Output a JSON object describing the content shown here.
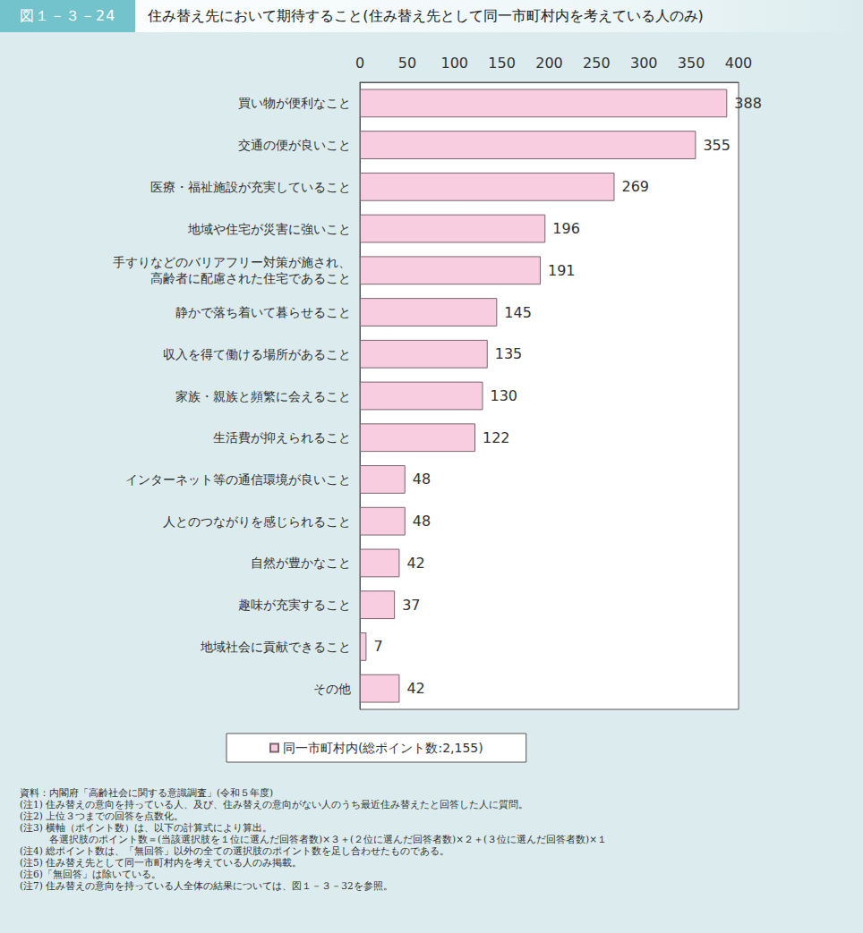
{
  "chart_data": {
    "type": "bar",
    "orientation": "horizontal",
    "figure_number": "図１－３－24",
    "title": "住み替え先において期待すること(住み替え先として同一市町村内を考えている人のみ)",
    "categories": [
      "買い物が便利なこと",
      "交通の便が良いこと",
      "医療・福祉施設が充実していること",
      "地域や住宅が災害に強いこと",
      "手すりなどのバリアフリー対策が施され、\n高齢者に配慮された住宅であること",
      "静かで落ち着いて暮らせること",
      "収入を得て働ける場所があること",
      "家族・親族と頻繁に会えること",
      "生活費が抑えられること",
      "インターネット等の通信環境が良いこと",
      "人とのつながりを感じられること",
      "自然が豊かなこと",
      "趣味が充実すること",
      "地域社会に貢献できること",
      "その他"
    ],
    "series": [
      {
        "name": "同一市町村内(総ポイント数:2,155)",
        "color": "#f8cddf",
        "values": [
          388,
          355,
          269,
          196,
          191,
          145,
          135,
          130,
          122,
          48,
          48,
          42,
          37,
          7,
          42
        ]
      }
    ],
    "xlim": [
      0,
      400
    ],
    "xticks": [
      0,
      50,
      100,
      150,
      200,
      250,
      300,
      350,
      400
    ],
    "grid": false,
    "data_labels": true,
    "legend": "bottom",
    "notes": [
      "資料：内閣府「高齢社会に関する意識調査」(令和５年度)",
      "(注1) 住み替えの意向を持っている人、及び、住み替えの意向がない人のうち最近住み替えたと回答した人に質問。",
      "(注2) 上位３つまでの回答を点数化。",
      "(注3) 横軸（ポイント数）は、以下の計算式により算出。",
      "　　　各選択肢のポイント数＝(当該選択肢を１位に選んだ回答者数)×３＋(２位に選んだ回答者数)×２＋(３位に選んだ回答者数)×１",
      "(注4) 総ポイント数は、「無回答」以外の全ての選択肢のポイント数を足し合わせたものである。",
      "(注5) 住み替え先として同一市町村内を考えている人のみ掲載。",
      "(注6)「無回答」は除いている。",
      "(注7) 住み替えの意向を持っている人全体の結果については、図１－３－32を参照。"
    ]
  }
}
